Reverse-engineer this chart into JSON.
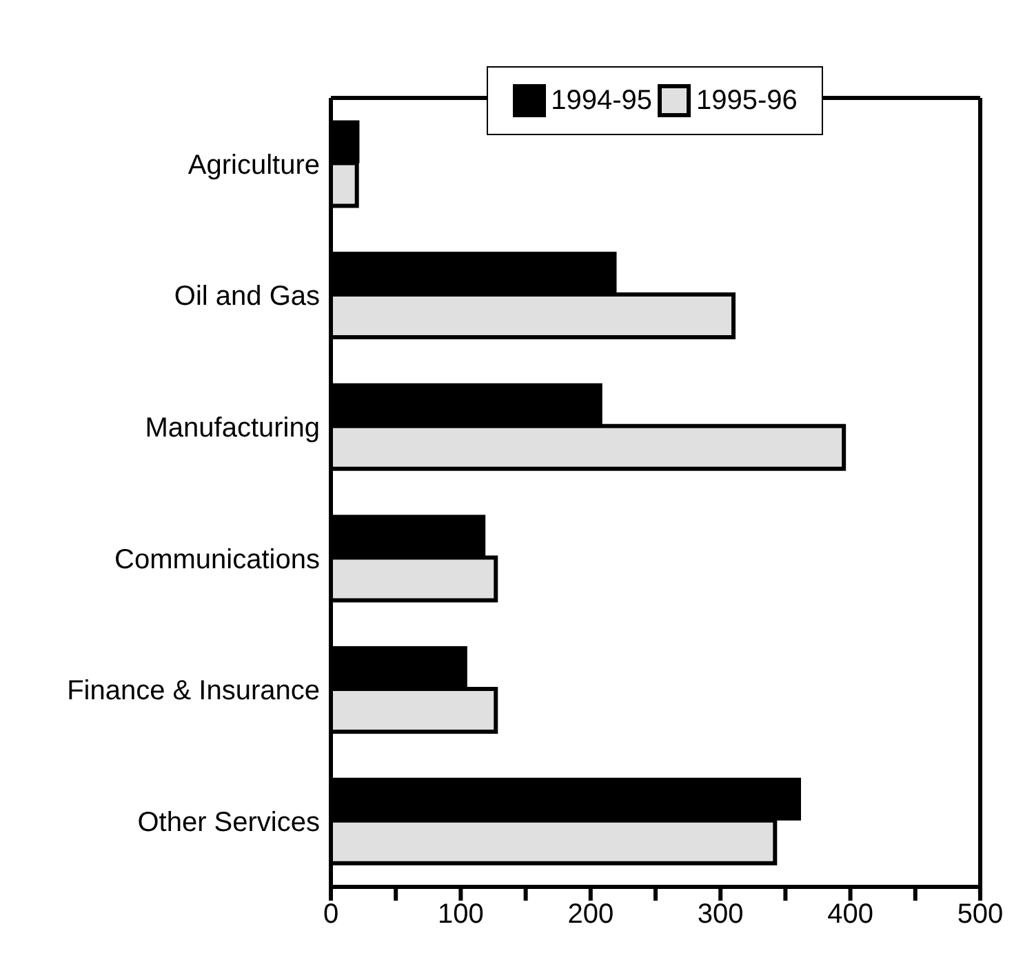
{
  "chart_data": {
    "type": "bar",
    "orientation": "horizontal",
    "categories": [
      "Agriculture",
      "Oil and Gas",
      "Manufacturing",
      "Communications",
      "Finance & Insurance",
      "Other Services"
    ],
    "series": [
      {
        "name": "1994-95",
        "color": "#000000",
        "values": [
          22,
          220,
          209,
          119,
          105,
          362
        ]
      },
      {
        "name": "1995-96",
        "color": "#e0e0e0",
        "values": [
          20,
          310,
          395,
          127,
          127,
          342
        ]
      }
    ],
    "xlim": [
      0,
      500
    ],
    "xticks": [
      0,
      {
        "value": 50,
        "label": null
      },
      100,
      {
        "value": 150,
        "label": null
      },
      200,
      {
        "value": 250,
        "label": null
      },
      300,
      {
        "value": 350,
        "label": null
      },
      400,
      {
        "value": 450,
        "label": null
      },
      500
    ],
    "grid": false,
    "legend": "top"
  }
}
